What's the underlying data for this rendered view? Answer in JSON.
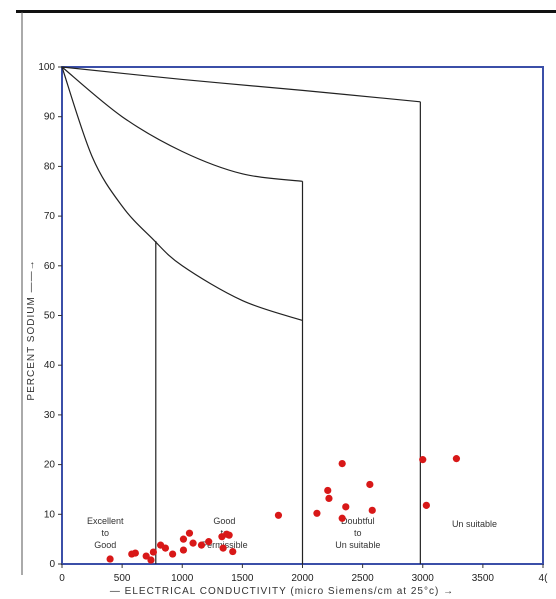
{
  "chart_data": {
    "type": "scatter",
    "xlabel": "— ELECTRICAL CONDUCTIVITY (micro Siemens/cm at 25°c) →",
    "ylabel": "PERCENT SODIUM ——→",
    "xlim": [
      0,
      4000
    ],
    "ylim": [
      0,
      100
    ],
    "x_ticks": [
      "0",
      "500",
      "1000",
      "1500",
      "2000",
      "2500",
      "3000",
      "3500",
      "4("
    ],
    "y_ticks": [
      "0",
      "10",
      "20",
      "30",
      "40",
      "50",
      "60",
      "70",
      "80",
      "90",
      "100"
    ],
    "grid": false,
    "zones": [
      {
        "label": [
          "Excellent",
          "to",
          "Good"
        ]
      },
      {
        "label": [
          "Good",
          "to",
          "Permissible"
        ]
      },
      {
        "label": [
          "Doubtful",
          "to",
          "Un suitable"
        ]
      },
      {
        "label": [
          "Un suitable"
        ]
      }
    ],
    "boundary_lines": {
      "curve_top": {
        "x": [
          0,
          1000,
          2000,
          2980
        ],
        "y": [
          100,
          97.5,
          95.3,
          93
        ]
      },
      "curve_mid": {
        "x": [
          0,
          500,
          1000,
          1500,
          2000
        ],
        "y": [
          100,
          90,
          83,
          78.5,
          77
        ]
      },
      "curve_low": {
        "x": [
          0,
          250,
          500,
          750,
          1000,
          1500,
          2000
        ],
        "y": [
          100,
          82,
          72,
          65.5,
          60,
          53,
          49
        ]
      },
      "verticals": [
        {
          "x": 780,
          "y": [
            0,
            65
          ]
        },
        {
          "x": 2000,
          "y": [
            0,
            77
          ]
        },
        {
          "x": 2980,
          "y": [
            0,
            93
          ]
        }
      ]
    },
    "series": [
      {
        "color": "#d81818",
        "points": [
          [
            400,
            1.0
          ],
          [
            580,
            2.0
          ],
          [
            610,
            2.2
          ],
          [
            700,
            1.6
          ],
          [
            740,
            0.8
          ],
          [
            760,
            2.4
          ],
          [
            820,
            3.8
          ],
          [
            860,
            3.2
          ],
          [
            920,
            2.0
          ],
          [
            1010,
            5.0
          ],
          [
            1010,
            2.8
          ],
          [
            1060,
            6.2
          ],
          [
            1090,
            4.2
          ],
          [
            1160,
            3.8
          ],
          [
            1220,
            4.5
          ],
          [
            1330,
            5.5
          ],
          [
            1340,
            3.2
          ],
          [
            1370,
            6.0
          ],
          [
            1390,
            5.8
          ],
          [
            1420,
            2.5
          ],
          [
            1800,
            9.8
          ],
          [
            2120,
            10.2
          ],
          [
            2210,
            14.8
          ],
          [
            2220,
            13.2
          ],
          [
            2330,
            20.2
          ],
          [
            2330,
            9.2
          ],
          [
            2360,
            11.5
          ],
          [
            2560,
            16.0
          ],
          [
            2580,
            10.8
          ],
          [
            3000,
            21.0
          ],
          [
            3030,
            11.8
          ],
          [
            3280,
            21.2
          ]
        ]
      }
    ]
  }
}
